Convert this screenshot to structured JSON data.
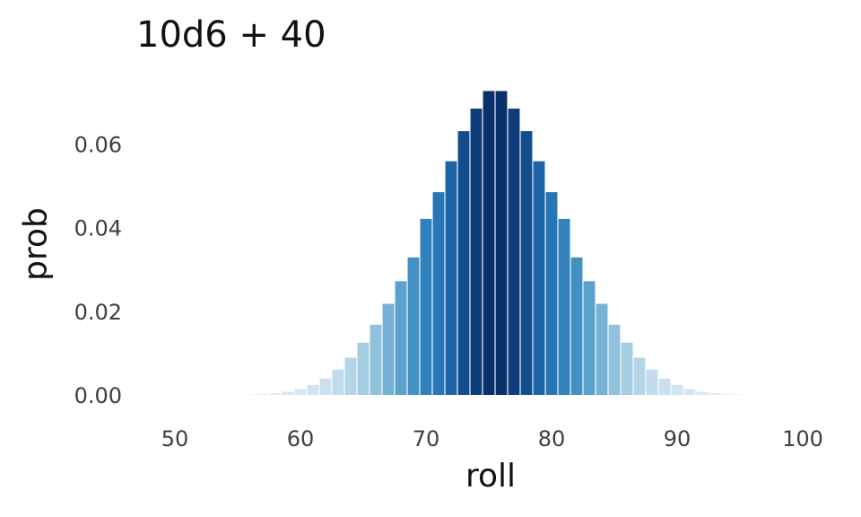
{
  "chart_data": {
    "type": "bar",
    "title": "10d6 + 40",
    "xlabel": "roll",
    "ylabel": "prob",
    "xlim": [
      50,
      100
    ],
    "ylim": [
      0,
      0.073
    ],
    "x_ticks": [
      "50",
      "60",
      "70",
      "80",
      "90",
      "100"
    ],
    "y_ticks": [
      "0.00",
      "0.02",
      "0.04",
      "0.06"
    ],
    "grid": false,
    "legend": "none",
    "color_scale": [
      "#deebf7",
      "#9ecae1",
      "#4292c6",
      "#2171b5",
      "#08306b"
    ],
    "categories": [
      50,
      51,
      52,
      53,
      54,
      55,
      56,
      57,
      58,
      59,
      60,
      61,
      62,
      63,
      64,
      65,
      66,
      67,
      68,
      69,
      70,
      71,
      72,
      73,
      74,
      75,
      76,
      77,
      78,
      79,
      80,
      81,
      82,
      83,
      84,
      85,
      86,
      87,
      88,
      89,
      90,
      91,
      92,
      93,
      94,
      95,
      96,
      97,
      98,
      99,
      100
    ],
    "values": [
      1.65e-08,
      1.65e-07,
      9.09e-07,
      3.64e-06,
      1.18e-05,
      3.31e-05,
      8.24e-05,
      0.000187,
      0.000391,
      0.000762,
      0.00139,
      0.0024,
      0.00391,
      0.00604,
      0.0089,
      0.0125,
      0.0168,
      0.0218,
      0.0272,
      0.0329,
      0.0421,
      0.0485,
      0.0559,
      0.0631,
      0.0685,
      0.0727,
      0.0727,
      0.0685,
      0.0631,
      0.0559,
      0.0485,
      0.0421,
      0.0329,
      0.0272,
      0.0218,
      0.0168,
      0.0125,
      0.0089,
      0.00604,
      0.00391,
      0.0024,
      0.00139,
      0.000762,
      0.000391,
      0.000187,
      8.24e-05,
      3.31e-05,
      1.18e-05,
      3.64e-06,
      9.09e-07,
      1.65e-07
    ]
  }
}
